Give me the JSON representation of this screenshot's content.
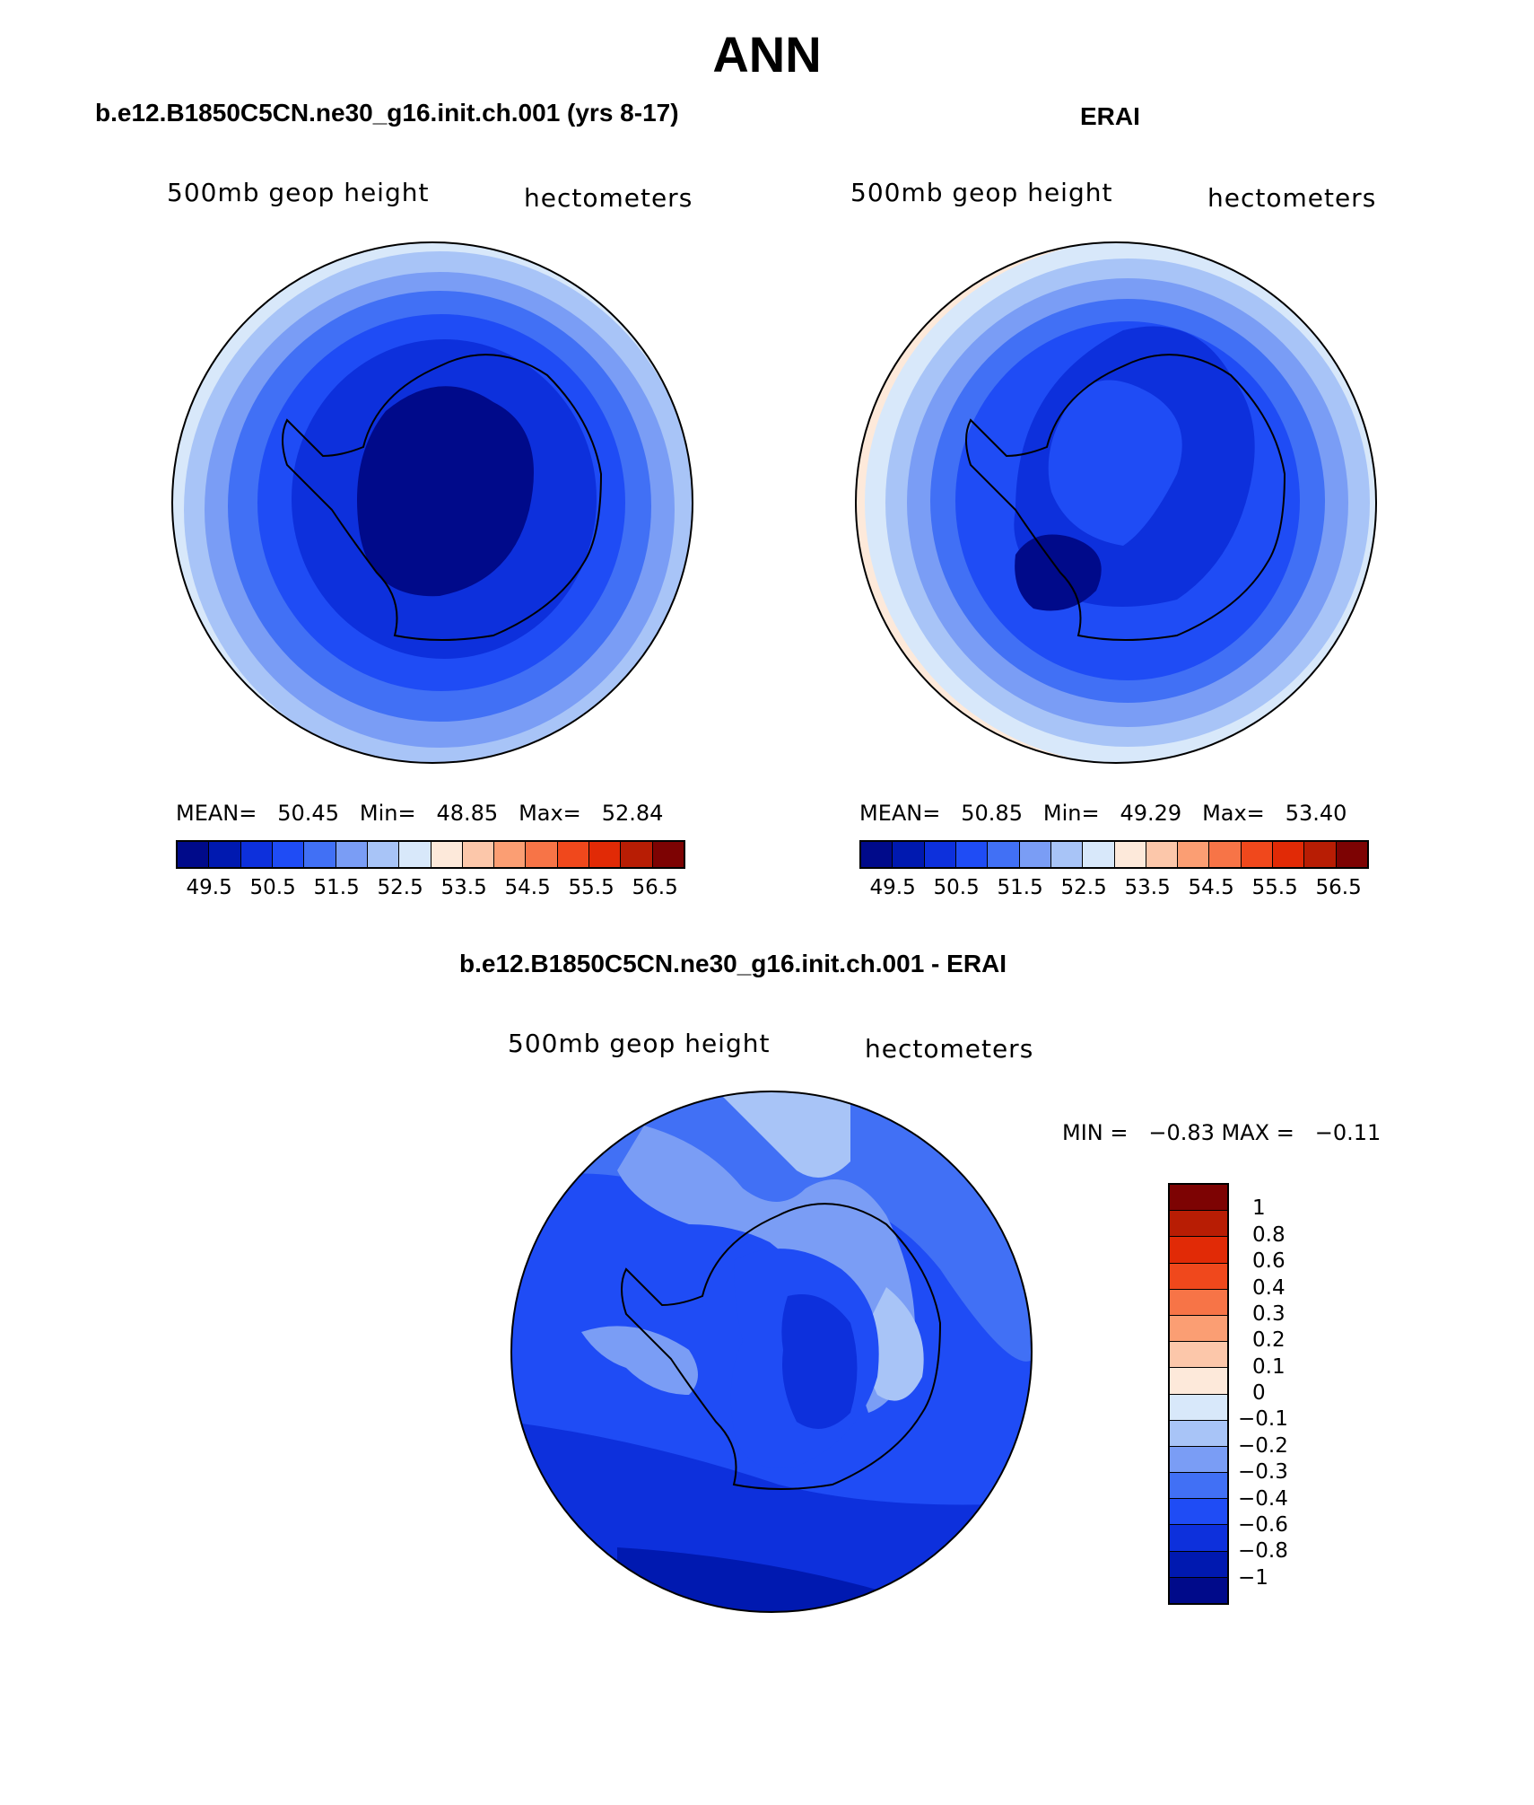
{
  "title": "ANN",
  "panels": [
    {
      "title": "b.e12.B1850C5CN.ne30_g16.init.ch.001 (yrs 8-17)",
      "variable": "500mb geop height",
      "units": "hectometers",
      "stats": {
        "mean_label": "MEAN=",
        "mean": "50.45",
        "min_label": "Min=",
        "min": "48.85",
        "max_label": "Max=",
        "max": "52.84"
      }
    },
    {
      "title": "ERAI",
      "variable": "500mb geop height",
      "units": "hectometers",
      "stats": {
        "mean_label": "MEAN=",
        "mean": "50.85",
        "min_label": "Min=",
        "min": "49.29",
        "max_label": "Max=",
        "max": "53.40"
      }
    }
  ],
  "abs_colorbar": {
    "colors": [
      "#000a8a",
      "#0019b0",
      "#0d30dc",
      "#1f4cf5",
      "#4170f5",
      "#7a9df5",
      "#a8c4f7",
      "#d8e8fa",
      "#fde9da",
      "#fcc7aa",
      "#fb9e73",
      "#f77447",
      "#f0481c",
      "#e12a06",
      "#b81d04",
      "#7d0303"
    ],
    "tick_labels": [
      "49.5",
      "50.5",
      "51.5",
      "52.5",
      "53.5",
      "54.5",
      "55.5",
      "56.5"
    ]
  },
  "diff_panel": {
    "title": "b.e12.B1850C5CN.ne30_g16.init.ch.001 - ERAI",
    "variable": "500mb geop height",
    "units": "hectometers",
    "stats_text": "MIN =   −0.83 MAX =   −0.11",
    "colorbar": {
      "colors_top_to_bottom": [
        "#7d0303",
        "#b81d04",
        "#e12a06",
        "#f0481c",
        "#f77447",
        "#fb9e73",
        "#fcc7aa",
        "#fde9da",
        "#d8e8fa",
        "#a8c4f7",
        "#7a9df5",
        "#4170f5",
        "#1f4cf5",
        "#0d30dc",
        "#0019b0",
        "#000a8a"
      ],
      "tick_labels": [
        "1",
        "0.8",
        "0.6",
        "0.4",
        "0.3",
        "0.2",
        "0.1",
        "0",
        "−0.1",
        "−0.2",
        "−0.3",
        "−0.4",
        "−0.6",
        "−0.8",
        "−1"
      ]
    }
  }
}
